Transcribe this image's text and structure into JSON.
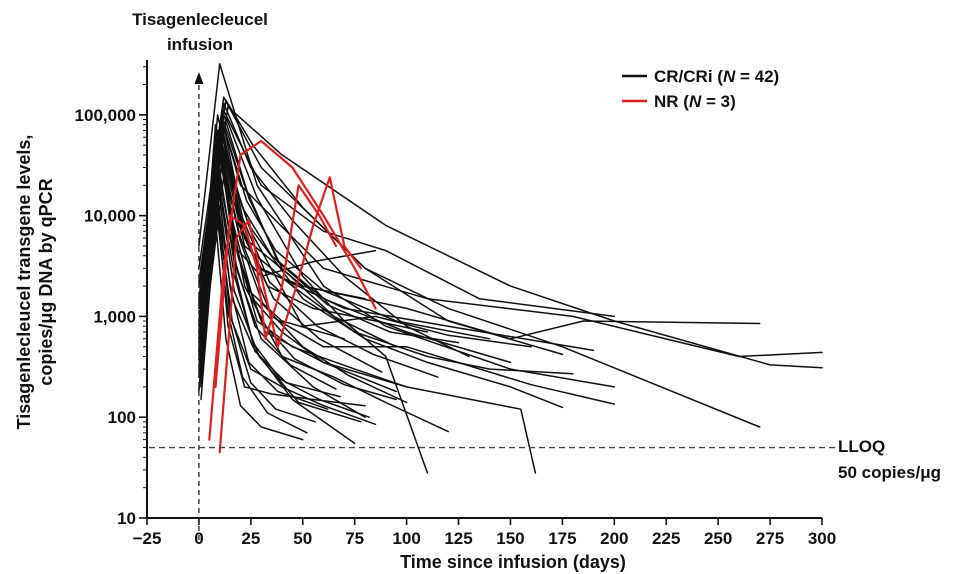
{
  "chart_data": {
    "type": "line",
    "xlabel": "Time since infusion (days)",
    "ylabel_lines": [
      "Tisagenlecleucel transgene levels,",
      "copies/μg DNA by qPCR"
    ],
    "xlim": [
      -25,
      300
    ],
    "ylim": [
      10,
      350000
    ],
    "y_scale": "log",
    "x_ticks": [
      -25,
      0,
      25,
      50,
      75,
      100,
      125,
      150,
      175,
      200,
      225,
      250,
      275,
      300
    ],
    "y_ticks": [
      10,
      100,
      1000,
      10000,
      100000
    ],
    "y_tick_labels": [
      "10",
      "100",
      "1,000",
      "10,000",
      "100,000"
    ],
    "infusion_annotation_lines": [
      "Tisagenlecleucel",
      "infusion"
    ],
    "lloq": {
      "value": 50,
      "label_line1": "LLOQ",
      "label_line2": "50 copies/μg"
    },
    "legend": [
      {
        "label_prefix": "CR/CRi (",
        "n_italic": "N",
        "label_suffix": " = 42)",
        "color": "#111111"
      },
      {
        "label_prefix": "NR (",
        "n_italic": "N",
        "label_suffix": " = 3)",
        "color": "#e02020"
      }
    ],
    "colors": {
      "cr": "#111111",
      "nr": "#e02020",
      "axis": "#111111"
    },
    "series": [
      {
        "group": "CR/CRi",
        "x": [
          0,
          10,
          28,
          60,
          90,
          150,
          200
        ],
        "y": [
          5000,
          320000,
          20000,
          2000,
          800,
          300,
          200
        ]
      },
      {
        "group": "CR/CRi",
        "x": [
          0,
          12,
          30,
          80,
          120,
          175,
          270
        ],
        "y": [
          3000,
          150000,
          30000,
          3000,
          1200,
          500,
          80
        ]
      },
      {
        "group": "CR/CRi",
        "x": [
          0,
          14,
          40,
          90,
          150,
          200,
          275,
          300
        ],
        "y": [
          2000,
          120000,
          40000,
          8000,
          2000,
          900,
          330,
          310
        ]
      },
      {
        "group": "CR/CRi",
        "x": [
          0,
          11,
          20,
          60,
          110,
          180,
          260,
          300
        ],
        "y": [
          1500,
          90000,
          20000,
          3000,
          1500,
          1000,
          400,
          440
        ]
      },
      {
        "group": "CR/CRi",
        "x": [
          0,
          9,
          22,
          50,
          100,
          150,
          185,
          270
        ],
        "y": [
          800,
          100000,
          6000,
          2000,
          1200,
          600,
          900,
          850
        ]
      },
      {
        "group": "CR/CRi",
        "x": [
          0,
          8,
          18,
          30,
          70,
          120,
          190
        ],
        "y": [
          600,
          80000,
          9000,
          3000,
          1200,
          800,
          460
        ]
      },
      {
        "group": "CR/CRi",
        "x": [
          1,
          10,
          25,
          50,
          85,
          120,
          160
        ],
        "y": [
          400,
          60000,
          7000,
          800,
          1000,
          650,
          500
        ]
      },
      {
        "group": "CR/CRi",
        "x": [
          1,
          12,
          30,
          60,
          90,
          135,
          200
        ],
        "y": [
          2500,
          110000,
          20000,
          7000,
          4500,
          1500,
          1000
        ]
      },
      {
        "group": "CR/CRi",
        "x": [
          0,
          9,
          22,
          45,
          75,
          110,
          140,
          180
        ],
        "y": [
          900,
          70000,
          5000,
          2000,
          700,
          400,
          300,
          270
        ]
      },
      {
        "group": "CR/CRi",
        "x": [
          0,
          11,
          24,
          50,
          80,
          110,
          150,
          175
        ],
        "y": [
          500,
          50000,
          8000,
          1500,
          600,
          350,
          200,
          125
        ]
      },
      {
        "group": "CR/CRi",
        "x": [
          1,
          10,
          20,
          35,
          60,
          100,
          160,
          200
        ],
        "y": [
          300,
          40000,
          6000,
          1000,
          500,
          500,
          210,
          135
        ]
      },
      {
        "group": "CR/CRi",
        "x": [
          1,
          13,
          28,
          50,
          70,
          90,
          110
        ],
        "y": [
          1800,
          95000,
          15000,
          2500,
          900,
          400,
          28
        ]
      },
      {
        "group": "CR/CRi",
        "x": [
          0,
          9,
          18,
          30,
          55,
          80
        ],
        "y": [
          700,
          30000,
          3000,
          600,
          200,
          100
        ]
      },
      {
        "group": "CR/CRi",
        "x": [
          0,
          8,
          16,
          26,
          45,
          75
        ],
        "y": [
          450,
          20000,
          1500,
          500,
          150,
          55
        ]
      },
      {
        "group": "CR/CRi",
        "x": [
          1,
          10,
          19,
          32,
          60,
          100,
          155,
          162
        ],
        "y": [
          350,
          55000,
          4000,
          700,
          350,
          200,
          120,
          28
        ]
      },
      {
        "group": "CR/CRi",
        "x": [
          0,
          12,
          22,
          40,
          65,
          90,
          120
        ],
        "y": [
          250,
          25000,
          2000,
          400,
          250,
          140,
          72
        ]
      },
      {
        "group": "CR/CRi",
        "x": [
          1,
          9,
          15,
          25,
          40,
          60,
          85
        ],
        "y": [
          200,
          15000,
          1000,
          300,
          200,
          130,
          85
        ]
      },
      {
        "group": "CR/CRi",
        "x": [
          0,
          11,
          20,
          28,
          50,
          80
        ],
        "y": [
          1200,
          80000,
          10000,
          3000,
          2000,
          1500
        ]
      },
      {
        "group": "CR/CRi",
        "x": [
          1,
          10,
          17,
          30,
          55,
          85
        ],
        "y": [
          650,
          45000,
          5000,
          2500,
          3500,
          4500
        ]
      },
      {
        "group": "CR/CRi",
        "x": [
          0,
          9,
          14,
          22,
          35,
          55,
          80
        ],
        "y": [
          180,
          12000,
          800,
          200,
          170,
          150,
          130
        ]
      },
      {
        "group": "CR/CRi",
        "x": [
          1,
          10,
          16,
          24,
          40,
          70
        ],
        "y": [
          1100,
          60000,
          7000,
          1800,
          900,
          600
        ]
      },
      {
        "group": "CR/CRi",
        "x": [
          0,
          12,
          25,
          45,
          70,
          100,
          130
        ],
        "y": [
          2200,
          130000,
          30000,
          9000,
          2500,
          800,
          400
        ]
      },
      {
        "group": "CR/CRi",
        "x": [
          1,
          8,
          13,
          20,
          30,
          50
        ],
        "y": [
          150,
          9000,
          600,
          130,
          80,
          60
        ]
      },
      {
        "group": "CR/CRi",
        "x": [
          0,
          11,
          19,
          28,
          45,
          75,
          100
        ],
        "y": [
          550,
          35000,
          4000,
          900,
          500,
          300,
          200
        ]
      },
      {
        "group": "CR/CRi",
        "x": [
          1,
          9,
          16,
          26,
          40,
          60,
          95
        ],
        "y": [
          850,
          65000,
          9000,
          1500,
          700,
          350,
          180
        ]
      },
      {
        "group": "CR/CRi",
        "x": [
          0,
          10,
          21,
          35,
          60,
          100,
          150
        ],
        "y": [
          1400,
          75000,
          12000,
          4000,
          1500,
          700,
          350
        ]
      },
      {
        "group": "CR/CRi",
        "x": [
          1,
          12,
          24,
          40,
          65,
          95
        ],
        "y": [
          1600,
          85000,
          15000,
          3000,
          1000,
          500
        ]
      },
      {
        "group": "CR/CRi",
        "x": [
          0,
          10,
          18,
          27,
          42,
          68
        ],
        "y": [
          320,
          28000,
          2500,
          450,
          220,
          160
        ]
      },
      {
        "group": "CR/CRi",
        "x": [
          1,
          11,
          20,
          33,
          55,
          85,
          110
        ],
        "y": [
          950,
          70000,
          8000,
          2000,
          1200,
          900,
          700
        ]
      },
      {
        "group": "CR/CRi",
        "x": [
          0,
          9,
          15,
          24,
          38,
          62
        ],
        "y": [
          420,
          22000,
          2000,
          350,
          180,
          120
        ]
      },
      {
        "group": "CR/CRi",
        "x": [
          1,
          13,
          26,
          50,
          80,
          120,
          175
        ],
        "y": [
          2800,
          140000,
          50000,
          12000,
          3000,
          900,
          420
        ]
      },
      {
        "group": "CR/CRi",
        "x": [
          0,
          10,
          17,
          29,
          48,
          78
        ],
        "y": [
          280,
          18000,
          1800,
          400,
          140,
          90
        ]
      },
      {
        "group": "CR/CRi",
        "x": [
          1,
          11,
          22,
          36,
          58,
          88
        ],
        "y": [
          750,
          52000,
          6000,
          1500,
          600,
          280
        ]
      },
      {
        "group": "CR/CRi",
        "x": [
          0,
          12,
          23,
          38,
          62,
          92,
          125
        ],
        "y": [
          1300,
          100000,
          18000,
          3500,
          1300,
          700,
          550
        ]
      },
      {
        "group": "CR/CRi",
        "x": [
          1,
          8,
          14,
          21,
          33,
          52
        ],
        "y": [
          230,
          14000,
          1100,
          250,
          110,
          70
        ]
      },
      {
        "group": "CR/CRi",
        "x": [
          0,
          10,
          20,
          31,
          50,
          72,
          100
        ],
        "y": [
          680,
          48000,
          5500,
          1300,
          500,
          260,
          140
        ]
      },
      {
        "group": "CR/CRi",
        "x": [
          1,
          11,
          18,
          27,
          44,
          66
        ],
        "y": [
          520,
          33000,
          3200,
          800,
          330,
          190
        ]
      },
      {
        "group": "CR/CRi",
        "x": [
          0,
          9,
          17,
          26,
          39,
          58,
          82
        ],
        "y": [
          370,
          26000,
          2600,
          550,
          240,
          150,
          100
        ]
      },
      {
        "group": "CR/CRi",
        "x": [
          1,
          12,
          21,
          34,
          57,
          84,
          115
        ],
        "y": [
          1050,
          78000,
          9500,
          2200,
          800,
          420,
          250
        ]
      },
      {
        "group": "CR/CRi",
        "x": [
          0,
          10,
          19,
          30,
          46,
          70,
          95
        ],
        "y": [
          460,
          38000,
          3800,
          900,
          380,
          210,
          150
        ]
      },
      {
        "group": "CR/CRi",
        "x": [
          1,
          11,
          23,
          37,
          60,
          95,
          140
        ],
        "y": [
          1700,
          88000,
          14000,
          4500,
          1800,
          900,
          600
        ]
      },
      {
        "group": "CR/CRi",
        "x": [
          0,
          9,
          16,
          25,
          37,
          56
        ],
        "y": [
          190,
          11000,
          900,
          220,
          120,
          90
        ]
      },
      {
        "group": "NR",
        "x": [
          5,
          12,
          20,
          30,
          45,
          60,
          75,
          85
        ],
        "y": [
          60,
          3000,
          40000,
          55000,
          30000,
          10000,
          3000,
          1200
        ]
      },
      {
        "group": "NR",
        "x": [
          8,
          15,
          22,
          28,
          32,
          40,
          48,
          58,
          66
        ],
        "y": [
          200,
          10000,
          8000,
          3000,
          600,
          2000,
          20000,
          10000,
          5000
        ]
      },
      {
        "group": "NR",
        "x": [
          10,
          14,
          18,
          24,
          30,
          38,
          47,
          55,
          63,
          70,
          78
        ],
        "y": [
          45,
          500,
          6000,
          9000,
          2500,
          500,
          2000,
          8000,
          24000,
          5000,
          3000
        ]
      }
    ]
  }
}
